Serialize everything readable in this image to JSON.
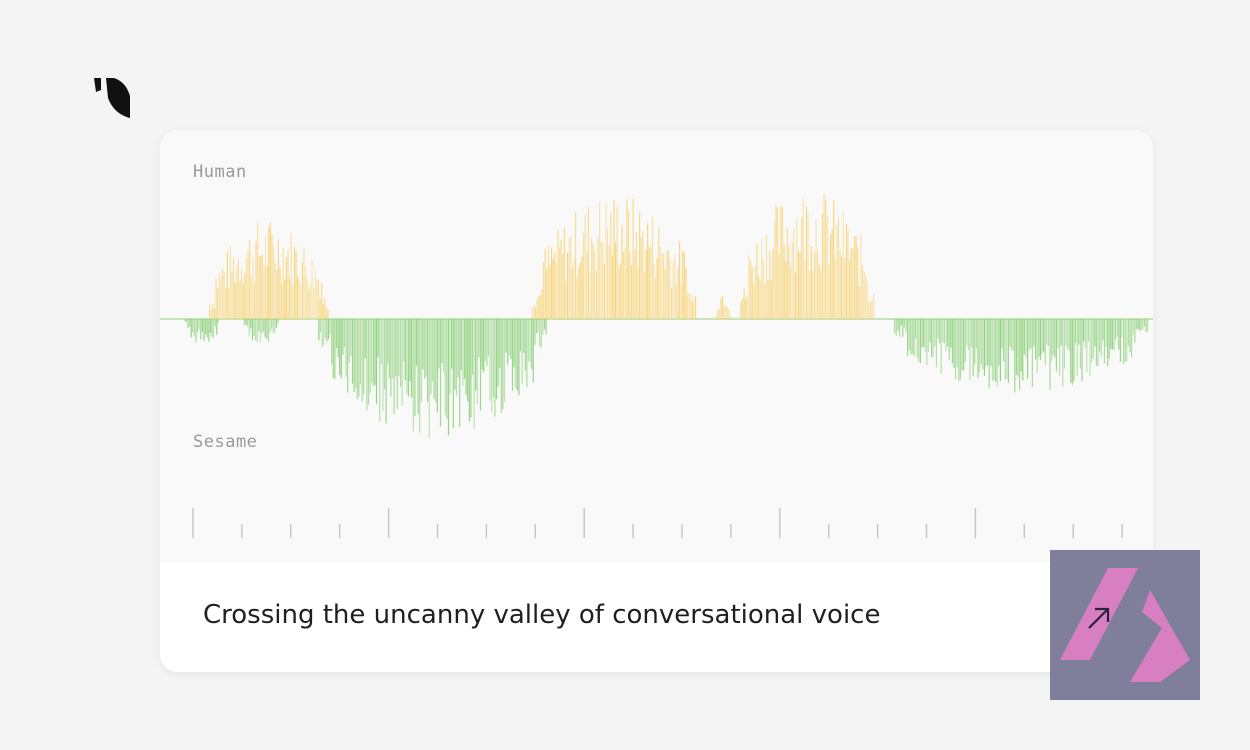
{
  "card": {
    "human_label": "Human",
    "sesame_label": "Sesame",
    "title": "Crossing the uncanny valley of conversational voice"
  },
  "colors": {
    "human_wave": "#f8d57a",
    "sesame_wave": "#8fd27d",
    "axis_line": "#c9e4b8",
    "ticks": "#c4c4c4",
    "badge_bg": "#7f7f9c",
    "badge_mark": "#e17fc4"
  },
  "icons": {
    "logo": "sesame-logo-icon",
    "arrow": "arrow-up-right-icon",
    "badge": "brand-badge-icon"
  },
  "waveform": {
    "human_segments": [
      {
        "start": 0.05,
        "end": 0.17,
        "level": 0.75
      },
      {
        "start": 0.375,
        "end": 0.54,
        "level": 0.95
      },
      {
        "start": 0.56,
        "end": 0.575,
        "level": 0.25
      },
      {
        "start": 0.585,
        "end": 0.72,
        "level": 1.0
      }
    ],
    "sesame_segments": [
      {
        "start": 0.025,
        "end": 0.06,
        "level": 0.2
      },
      {
        "start": 0.085,
        "end": 0.12,
        "level": 0.22
      },
      {
        "start": 0.16,
        "end": 0.39,
        "level": 0.9
      },
      {
        "start": 0.74,
        "end": 0.995,
        "level": 0.55
      }
    ]
  },
  "timeline": {
    "tick_count": 20,
    "major_every": 4
  }
}
